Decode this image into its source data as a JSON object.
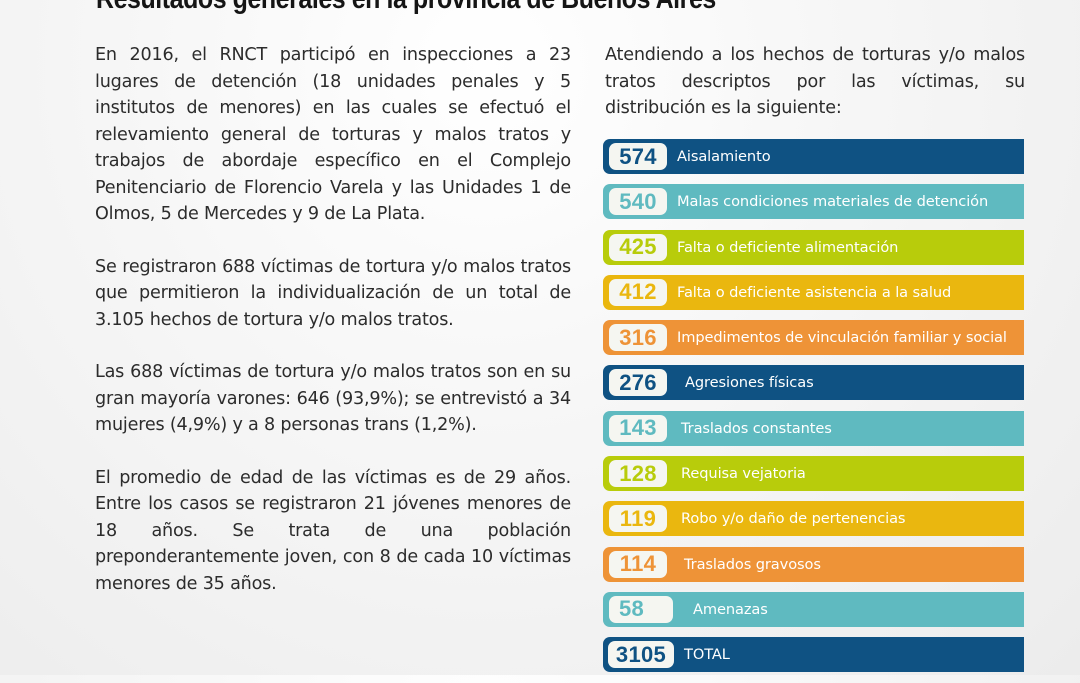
{
  "title": "Resultados generales en la provincia de Buenos Aires",
  "left_paragraphs": [
    "En 2016, el RNCT participó en inspecciones a 23 lugares de detención (18 unidades penales y 5 institutos de menores) en las cuales se efectuó el relevamiento general de torturas y malos tratos y trabajos de abordaje específico en el Complejo Penitenciario de Florencio Varela y las Unidades 1 de Olmos, 5 de Mercedes y 9 de La Plata.",
    "Se registraron 688 víctimas de tortura y/o malos tratos que permitieron la individualización de un total de 3.105 hechos de tortura y/o malos tratos.",
    "Las 688 víctimas de tortura y/o malos tratos son en su gran mayoría varones: 646 (93,9%); se entrevistó a 34 mujeres (4,9%) y a 8 personas trans (1,2%).",
    "El promedio de edad de las víctimas es de 29 años. Entre los casos se registraron 21 jóvenes menores de 18 años. Se trata de una población preponderantemente joven, con 8 de cada 10 víctimas menores de 35 años."
  ],
  "distribution_intro": "Atendiendo a los hechos de torturas y/o malos tratos descriptos por las víctimas, su distribución es la siguiente:",
  "colors": {
    "dark_blue": "#0f5283",
    "teal": "#5fbac0",
    "lime": "#b8cc0b",
    "yellow": "#eab70f",
    "orange": "#ee9337"
  },
  "distribution": [
    {
      "value": "574",
      "label": "Aisalamiento",
      "color": "#0f5283"
    },
    {
      "value": "540",
      "label": "Malas condiciones materiales de detención",
      "color": "#5fbac0"
    },
    {
      "value": "425",
      "label": "Falta o deficiente alimentación",
      "color": "#b8cc0b"
    },
    {
      "value": "412",
      "label": "Falta o deficiente asistencia a la salud",
      "color": "#eab70f"
    },
    {
      "value": "316",
      "label": "Impedimentos de vinculación familiar y social",
      "color": "#ee9337"
    },
    {
      "value": "276",
      "label": "Agresiones físicas",
      "color": "#0f5283"
    },
    {
      "value": "143",
      "label": "Traslados constantes",
      "color": "#5fbac0"
    },
    {
      "value": "128",
      "label": "Requisa vejatoria",
      "color": "#b8cc0b"
    },
    {
      "value": "119",
      "label": "Robo y/o daño de pertenencias",
      "color": "#eab70f"
    },
    {
      "value": "114",
      "label": "Traslados gravosos",
      "color": "#ee9337"
    },
    {
      "value": "58",
      "label": "Amenazas",
      "color": "#5fbac0"
    },
    {
      "value": "3105",
      "label": "TOTAL",
      "color": "#0f5283"
    }
  ]
}
